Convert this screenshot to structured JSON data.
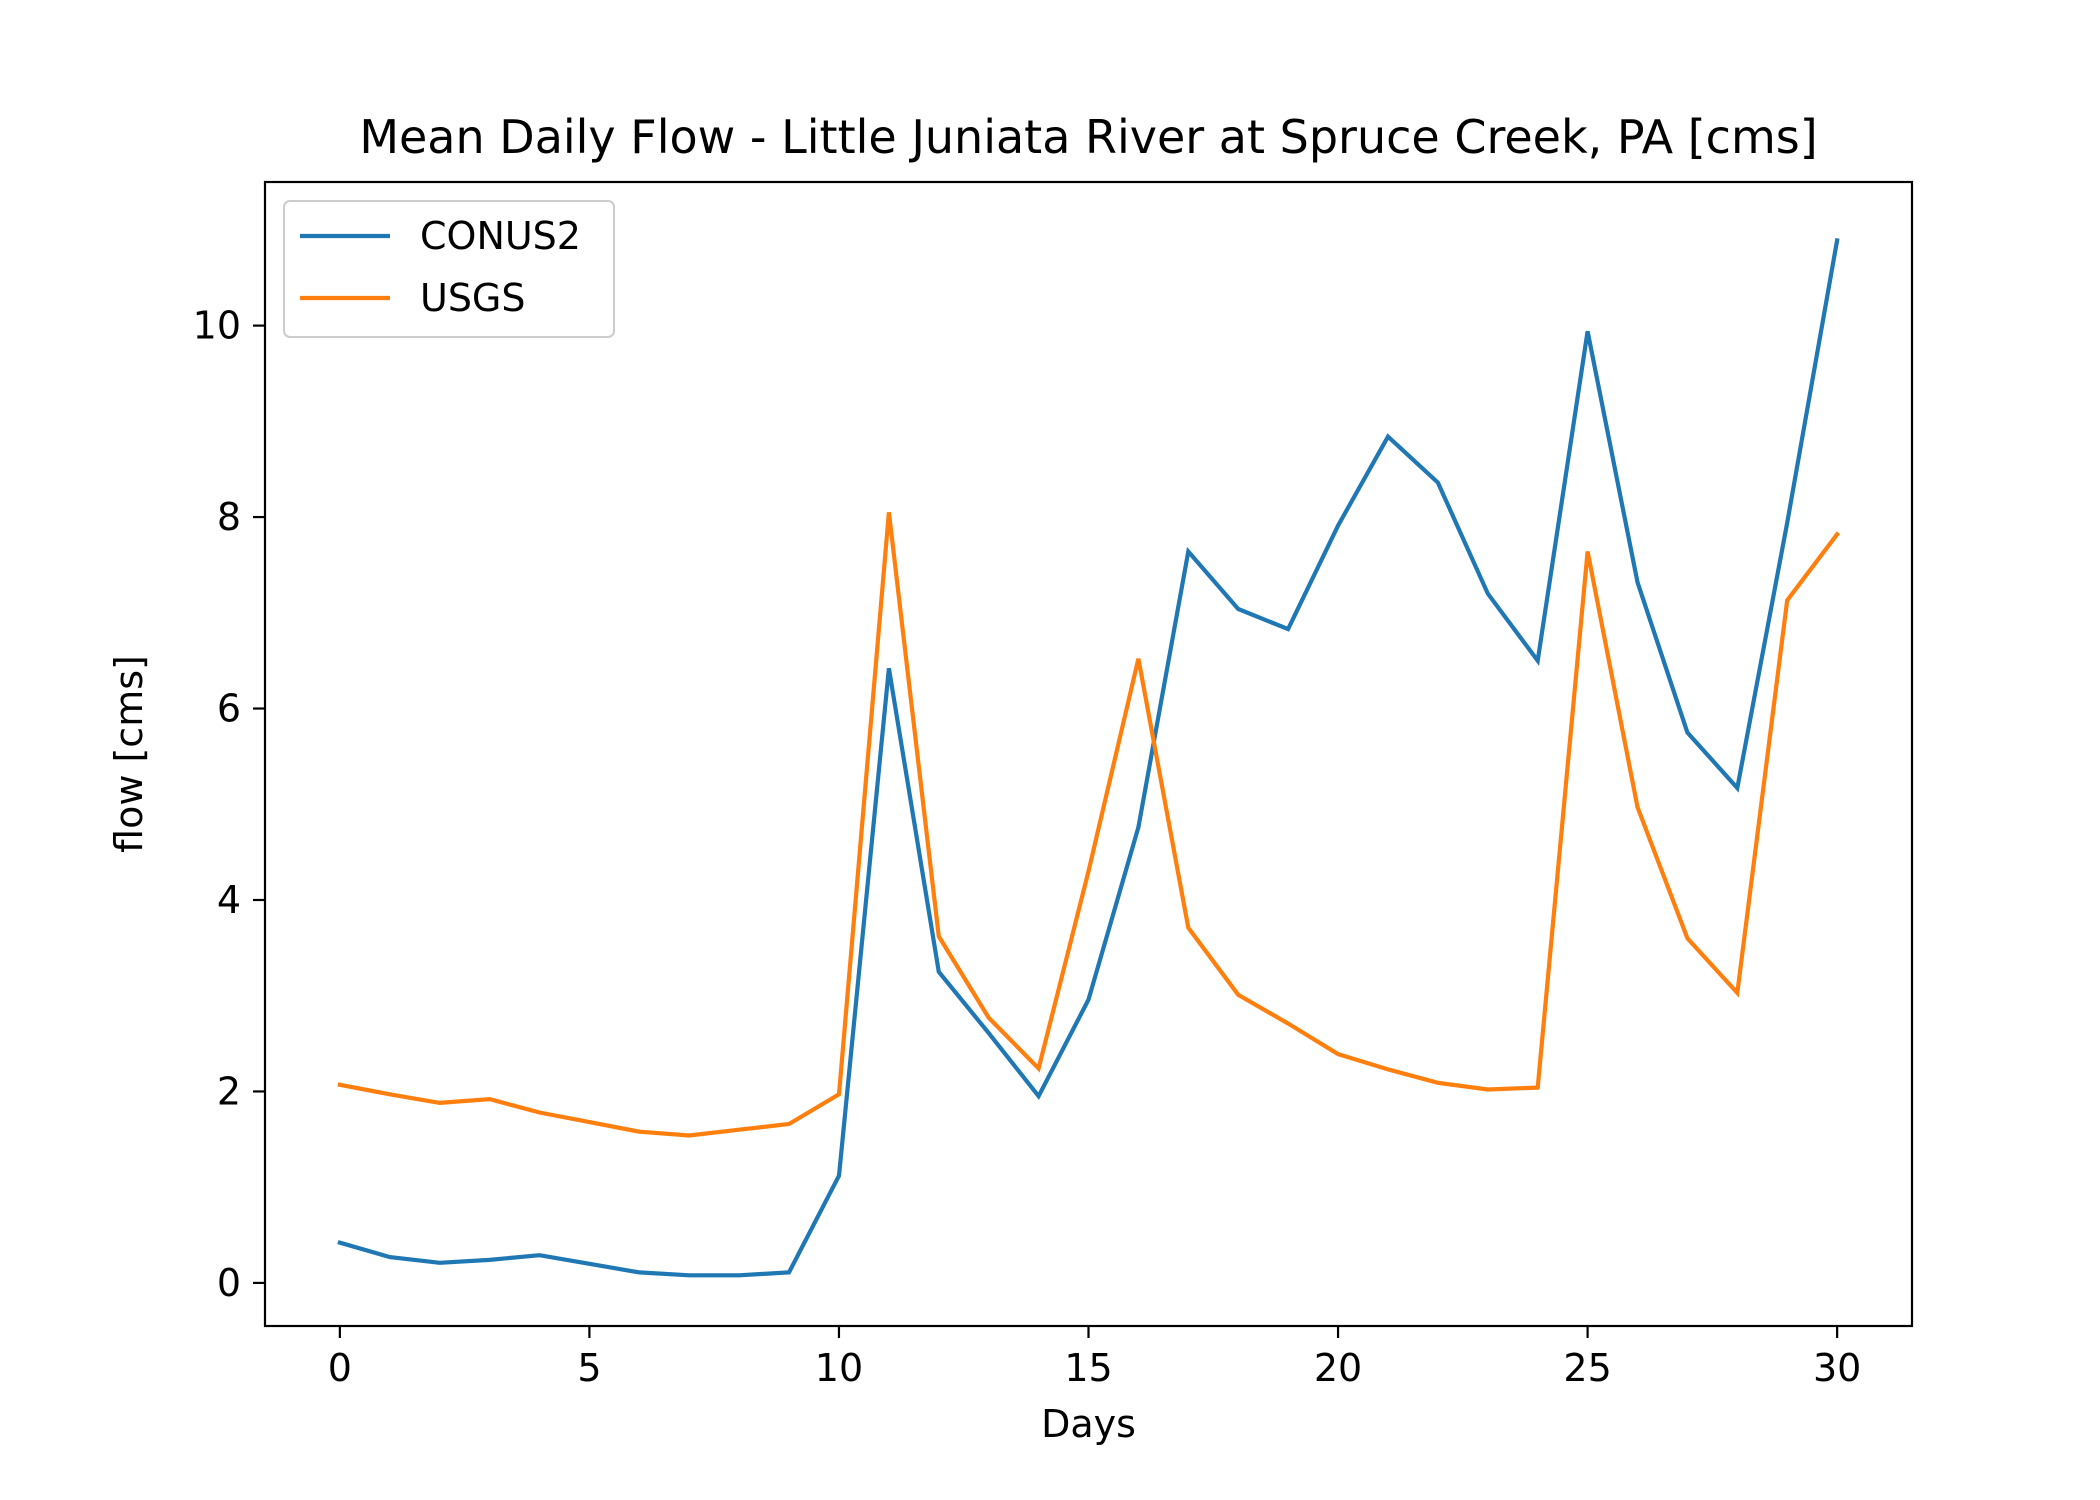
{
  "chart_data": {
    "type": "line",
    "title": "Mean Daily Flow - Little Juniata River at Spruce Creek, PA [cms]",
    "xlabel": "Days",
    "ylabel": "flow [cms]",
    "xlim": [
      -1.5,
      31.5
    ],
    "ylim": [
      -0.45,
      11.5
    ],
    "xticks": [
      0,
      5,
      10,
      15,
      20,
      25,
      30
    ],
    "xtick_labels": [
      "0",
      "5",
      "10",
      "15",
      "20",
      "25",
      "30"
    ],
    "yticks": [
      0,
      2,
      4,
      6,
      8,
      10
    ],
    "ytick_labels": [
      "0",
      "2",
      "4",
      "6",
      "8",
      "10"
    ],
    "grid": false,
    "legend_position": "top-left",
    "x": [
      0,
      1,
      2,
      3,
      4,
      5,
      6,
      7,
      8,
      9,
      10,
      11,
      12,
      13,
      14,
      15,
      16,
      17,
      18,
      19,
      20,
      21,
      22,
      23,
      24,
      25,
      26,
      27,
      28,
      29,
      30
    ],
    "series": [
      {
        "name": "CONUS2",
        "color": "#1f77b4",
        "values": [
          0.42,
          0.27,
          0.21,
          0.24,
          0.29,
          0.2,
          0.11,
          0.08,
          0.08,
          0.11,
          1.12,
          6.42,
          3.25,
          2.61,
          1.95,
          2.96,
          4.76,
          7.64,
          7.04,
          6.83,
          7.91,
          8.84,
          8.36,
          7.2,
          6.5,
          9.94,
          7.32,
          5.75,
          5.17,
          7.94,
          10.89
        ]
      },
      {
        "name": "USGS",
        "color": "#ff7f0e",
        "values": [
          2.07,
          1.97,
          1.88,
          1.92,
          1.78,
          1.68,
          1.58,
          1.54,
          1.6,
          1.66,
          1.97,
          8.05,
          3.62,
          2.77,
          2.24,
          4.3,
          6.52,
          3.71,
          3.01,
          2.71,
          2.39,
          2.23,
          2.09,
          2.02,
          2.04,
          7.64,
          4.97,
          3.6,
          3.03,
          7.13,
          7.82
        ]
      }
    ]
  }
}
